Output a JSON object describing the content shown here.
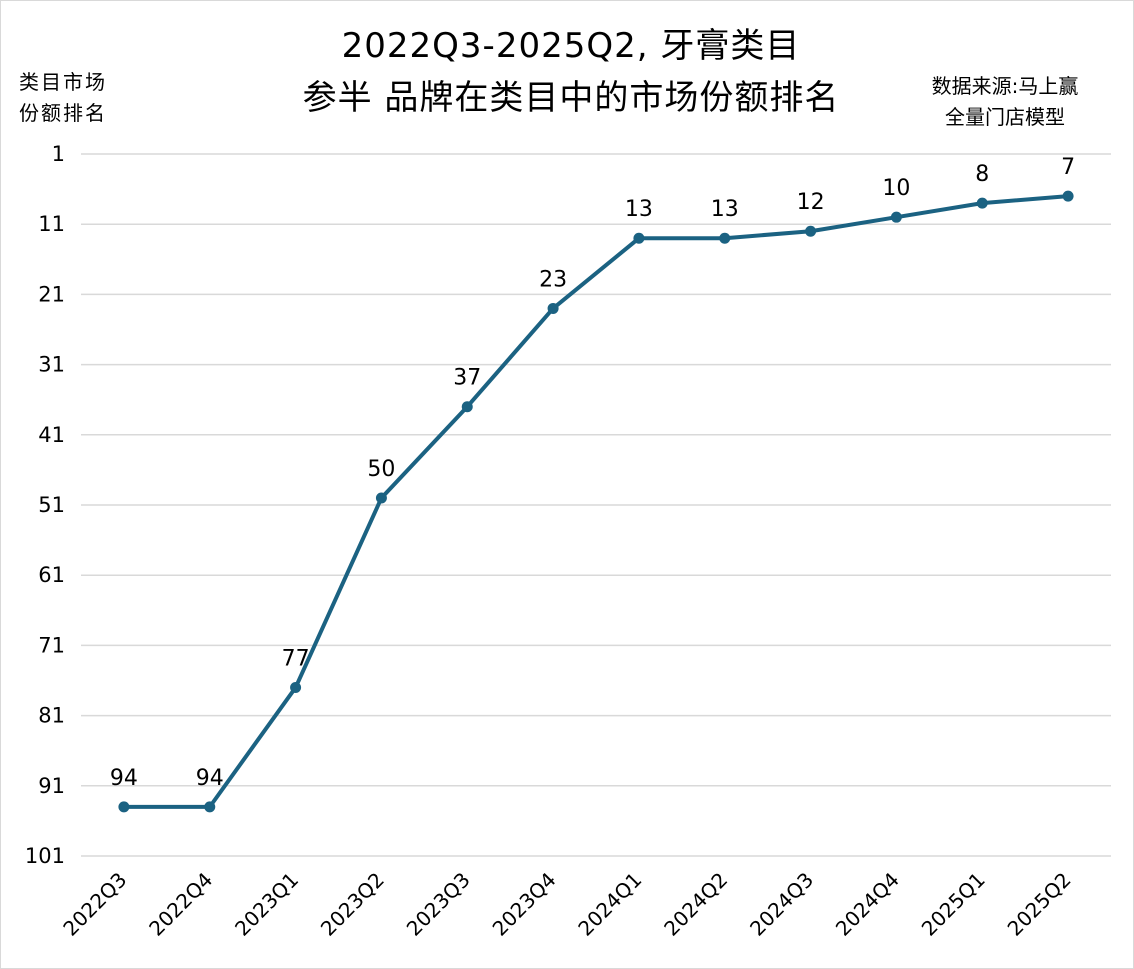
{
  "chart_data": {
    "type": "line",
    "title_line1": "2022Q3-2025Q2, 牙膏类目",
    "title_line2": "参半 品牌在类目中的市场份额排名",
    "ylabel_line1": "类目市场",
    "ylabel_line2": "份额排名",
    "source_line1": "数据来源:马上赢",
    "source_line2": "全量门店模型",
    "categories": [
      "2022Q3",
      "2022Q4",
      "2023Q1",
      "2023Q2",
      "2023Q3",
      "2023Q4",
      "2024Q1",
      "2024Q2",
      "2024Q3",
      "2024Q4",
      "2025Q1",
      "2025Q2"
    ],
    "series": [
      {
        "values": [
          94,
          94,
          77,
          50,
          37,
          23,
          13,
          13,
          12,
          10,
          8,
          7
        ]
      }
    ],
    "yticks": [
      1,
      11,
      21,
      31,
      41,
      51,
      61,
      71,
      81,
      91,
      101
    ],
    "ylim": [
      1,
      101
    ],
    "y_reversed": true,
    "grid": true,
    "line_color": "#1b6282",
    "grid_color": "#d9d9d9"
  }
}
